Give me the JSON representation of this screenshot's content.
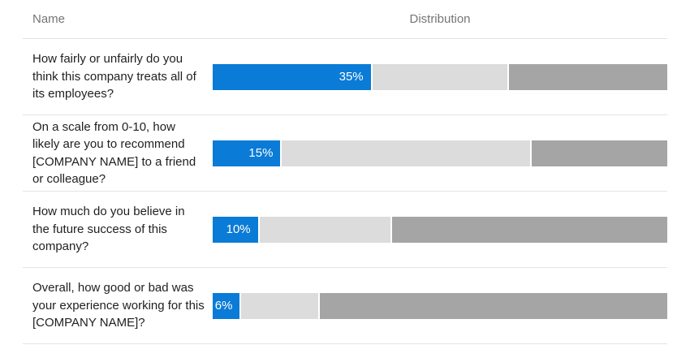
{
  "colors": {
    "blue": "#0a7bd6",
    "light": "#dcdcdc",
    "dark": "#a5a5a5"
  },
  "table": {
    "col_name_header": "Name",
    "col_dist_header": "Distribution",
    "rows": [
      {
        "question": "How fairly or unfairly do you think this company treats all of its employees?",
        "label": "35%",
        "blue": 35,
        "light": 30,
        "dark": 35
      },
      {
        "question": "On a scale from 0-10, how likely are you to recommend [COMPANY NAME] to a friend or colleague?",
        "label": "15%",
        "blue": 15,
        "light": 55,
        "dark": 30
      },
      {
        "question": "How much do you believe in the future success of this company?",
        "label": "10%",
        "blue": 10,
        "light": 29,
        "dark": 61
      },
      {
        "question": "Overall, how good or bad was your experience working for this [COMPANY NAME]?",
        "label": "6%",
        "blue": 6,
        "light": 17,
        "dark": 77
      }
    ]
  },
  "chart_data": {
    "type": "bar",
    "orientation": "horizontal",
    "stacked": true,
    "categories": [
      "How fairly or unfairly do you think this company treats all of its employees?",
      "On a scale from 0-10, how likely are you to recommend [COMPANY NAME] to a friend or colleague?",
      "How much do you believe in the future success of this company?",
      "Overall, how good or bad was your experience working for this [COMPANY NAME]?"
    ],
    "series": [
      {
        "name": "highlighted-segment",
        "color": "#0a7bd6",
        "values": [
          35,
          15,
          10,
          6
        ]
      },
      {
        "name": "light-gray-segment",
        "color": "#dcdcdc",
        "values": [
          30,
          55,
          29,
          17
        ]
      },
      {
        "name": "dark-gray-segment",
        "color": "#a5a5a5",
        "values": [
          35,
          30,
          61,
          77
        ]
      }
    ],
    "value_labels": [
      "35%",
      "15%",
      "10%",
      "6%"
    ],
    "title": "",
    "xlabel": "Distribution",
    "ylabel": "Name",
    "xlim": [
      0,
      100
    ],
    "grid": false,
    "legend_position": "none"
  }
}
